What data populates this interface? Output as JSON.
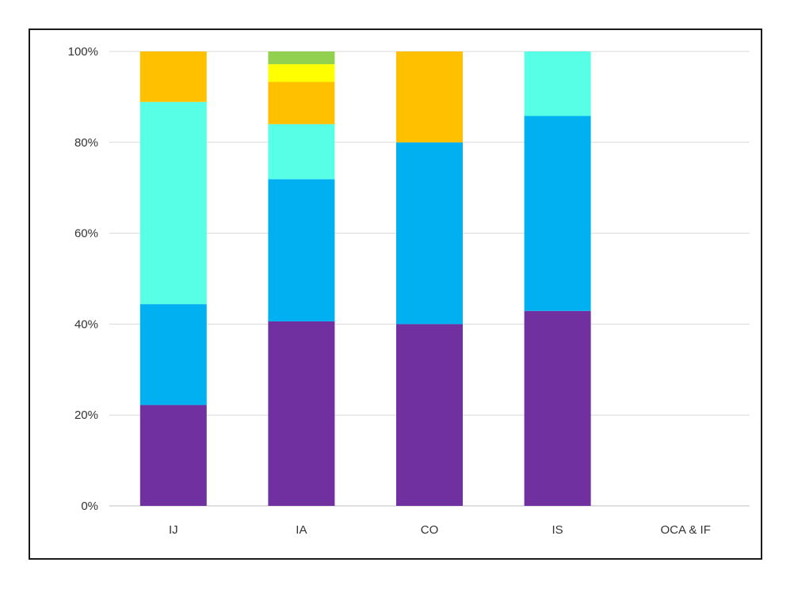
{
  "chart_data": {
    "type": "bar",
    "stacked": true,
    "normalized": true,
    "categories": [
      "IJ",
      "IA",
      "CO",
      "IS",
      "OCA & IF"
    ],
    "y_ticks": [
      "0%",
      "20%",
      "40%",
      "60%",
      "80%",
      "100%"
    ],
    "ylim": [
      0,
      100
    ],
    "grid": true,
    "legend": false,
    "title": "",
    "xlabel": "",
    "ylabel": "",
    "series": [
      {
        "color": "#7030A0",
        "values": [
          22.2,
          40.6,
          40.0,
          42.9,
          0
        ]
      },
      {
        "color": "#00B0F0",
        "values": [
          22.2,
          31.3,
          40.0,
          42.9,
          0
        ]
      },
      {
        "color": "#57FFE6",
        "values": [
          44.5,
          12.1,
          0,
          14.2,
          0
        ]
      },
      {
        "color": "#FFC000",
        "values": [
          11.1,
          9.3,
          20.0,
          0,
          0
        ]
      },
      {
        "color": "#FFFF00",
        "values": [
          0,
          3.9,
          0,
          0,
          0
        ]
      },
      {
        "color": "#92D050",
        "values": [
          0,
          2.8,
          0,
          0,
          0
        ]
      }
    ]
  }
}
